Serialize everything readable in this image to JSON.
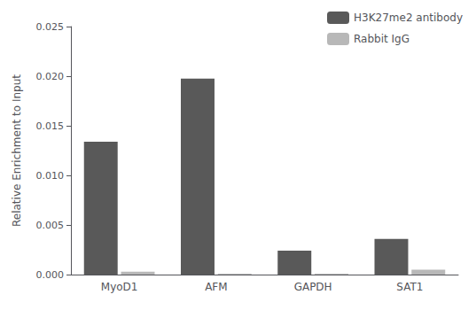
{
  "chart_data": {
    "type": "bar",
    "categories": [
      "MyoD1",
      "AFM",
      "GAPDH",
      "SAT1"
    ],
    "series": [
      {
        "name": "H3K27me2 antibody",
        "color": "#595959",
        "values": [
          0.0134,
          0.01975,
          0.0024,
          0.0036
        ]
      },
      {
        "name": "Rabbit IgG",
        "color": "#b8b8b8",
        "values": [
          0.0003,
          0.0001,
          0.0001,
          0.0005
        ]
      }
    ],
    "ylabel": "Relative Enrichment to Input",
    "ylim": [
      0,
      0.025
    ],
    "yticks": [
      {
        "value": 0,
        "label": "0.000"
      },
      0.005,
      {
        "value": 0.01,
        "label": "0.010"
      },
      0.015,
      {
        "value": 0.02,
        "label": "0.020"
      },
      0.025
    ],
    "grid": false,
    "legend": "upper right"
  }
}
